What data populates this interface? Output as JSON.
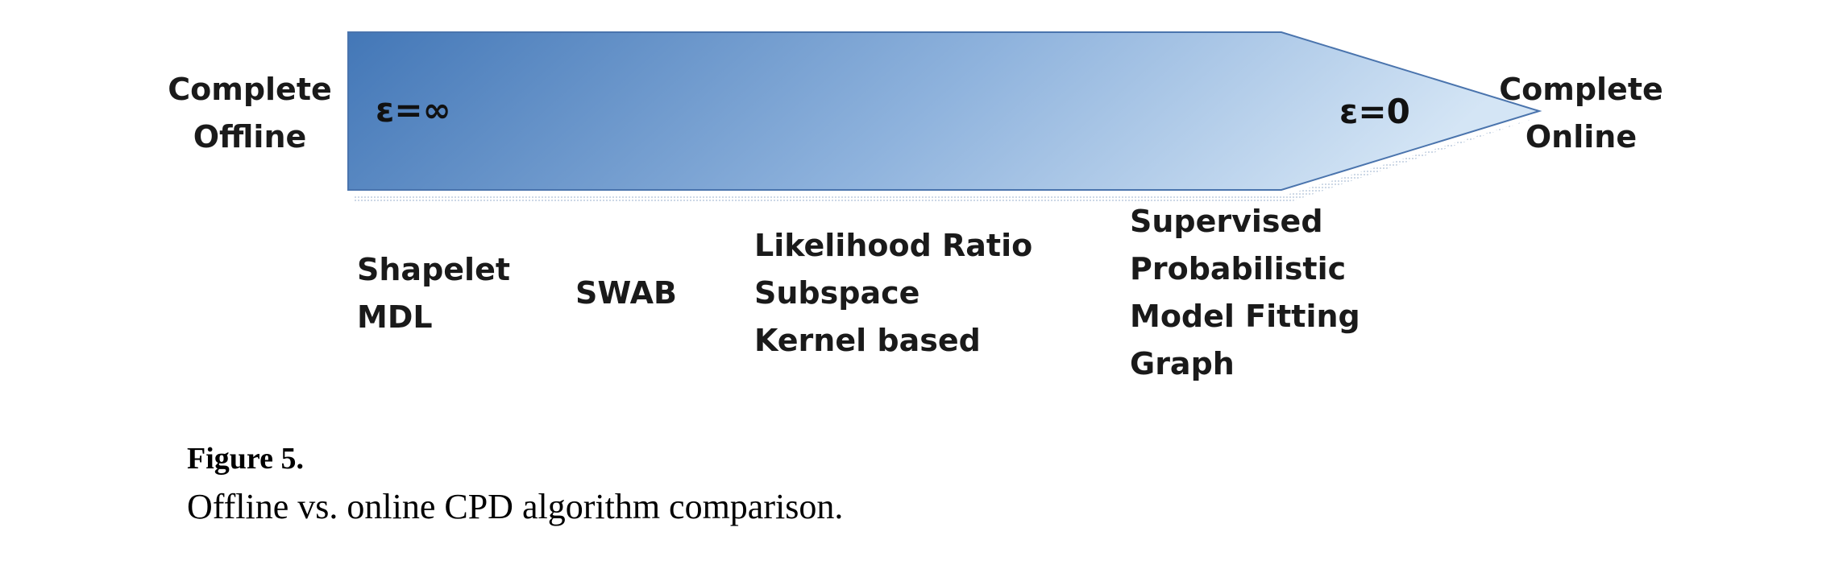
{
  "scale": {
    "left_end": [
      "Complete",
      "Offline"
    ],
    "right_end": [
      "Complete",
      "Online"
    ],
    "epsilon_left": "ε=∞",
    "epsilon_right": "ε=0"
  },
  "method_groups": [
    [
      "Shapelet",
      "MDL"
    ],
    [
      "SWAB"
    ],
    [
      "Likelihood Ratio",
      "Subspace",
      "Kernel based"
    ],
    [
      "Supervised",
      "Probabilistic",
      "Model Fitting",
      "Graph"
    ]
  ],
  "caption": {
    "figure_number": "Figure 5.",
    "text": "Offline vs. online CPD algorithm comparison."
  },
  "colors": {
    "arrow_dark": "#4377b7",
    "arrow_light": "#cde0f3",
    "arrow_edge": "#4a74ad"
  }
}
